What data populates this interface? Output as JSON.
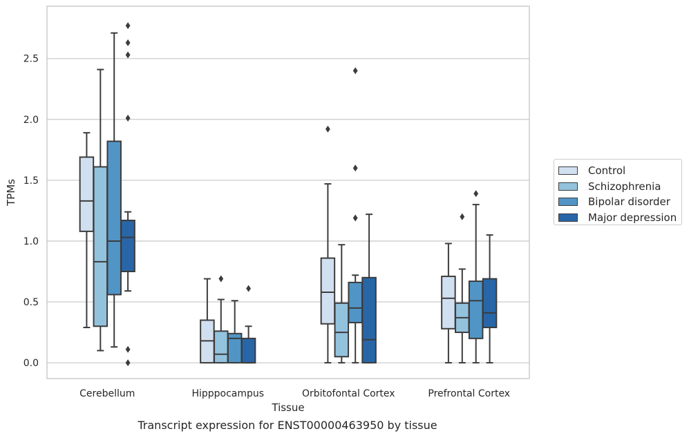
{
  "chart_data": {
    "type": "box",
    "xlabel": "Tissue",
    "ylabel": "TPMs",
    "ylim": [
      -0.13,
      2.93
    ],
    "yticks": [
      0.0,
      0.5,
      1.0,
      1.5,
      2.0,
      2.5
    ],
    "ytick_labels": [
      "0.0",
      "0.5",
      "1.0",
      "1.5",
      "2.0",
      "2.5"
    ],
    "categories": [
      "Cerebellum",
      "Hipppocampus",
      "Orbitofontal Cortex",
      "Prefrontal Cortex"
    ],
    "grid": "horizontal",
    "legend_position": "right",
    "series": [
      {
        "name": "Control",
        "color": "#d1e0f0",
        "boxes": [
          {
            "whislo": 0.29,
            "q1": 1.08,
            "med": 1.33,
            "q3": 1.69,
            "whishi": 1.89,
            "fliers": []
          },
          {
            "whislo": 0.0,
            "q1": 0.0,
            "med": 0.18,
            "q3": 0.35,
            "whishi": 0.69,
            "fliers": []
          },
          {
            "whislo": 0.0,
            "q1": 0.32,
            "med": 0.58,
            "q3": 0.86,
            "whishi": 1.47,
            "fliers": [
              1.92
            ]
          },
          {
            "whislo": 0.0,
            "q1": 0.28,
            "med": 0.53,
            "q3": 0.71,
            "whishi": 0.98,
            "fliers": []
          }
        ]
      },
      {
        "name": "Schizophrenia",
        "color": "#93c2dd",
        "boxes": [
          {
            "whislo": 0.1,
            "q1": 0.3,
            "med": 0.83,
            "q3": 1.61,
            "whishi": 2.41,
            "fliers": []
          },
          {
            "whislo": 0.0,
            "q1": 0.0,
            "med": 0.07,
            "q3": 0.26,
            "whishi": 0.52,
            "fliers": [
              0.69
            ]
          },
          {
            "whislo": 0.0,
            "q1": 0.05,
            "med": 0.25,
            "q3": 0.49,
            "whishi": 0.97,
            "fliers": []
          },
          {
            "whislo": 0.0,
            "q1": 0.25,
            "med": 0.37,
            "q3": 0.49,
            "whishi": 0.77,
            "fliers": [
              1.2
            ]
          }
        ]
      },
      {
        "name": "Bipolar disorder",
        "color": "#5195c6",
        "boxes": [
          {
            "whislo": 0.13,
            "q1": 0.56,
            "med": 1.0,
            "q3": 1.82,
            "whishi": 2.71,
            "fliers": []
          },
          {
            "whislo": 0.0,
            "q1": 0.0,
            "med": 0.2,
            "q3": 0.24,
            "whishi": 0.51,
            "fliers": []
          },
          {
            "whislo": 0.0,
            "q1": 0.33,
            "med": 0.45,
            "q3": 0.66,
            "whishi": 0.72,
            "fliers": [
              1.19,
              1.6,
              2.4
            ]
          },
          {
            "whislo": 0.0,
            "q1": 0.2,
            "med": 0.51,
            "q3": 0.67,
            "whishi": 1.3,
            "fliers": [
              1.39
            ]
          }
        ]
      },
      {
        "name": "Major depression",
        "color": "#2866a7",
        "boxes": [
          {
            "whislo": 0.59,
            "q1": 0.75,
            "med": 1.03,
            "q3": 1.17,
            "whishi": 1.24,
            "fliers": [
              0.0,
              0.11,
              2.01,
              2.53,
              2.77,
              2.63
            ]
          },
          {
            "whislo": 0.0,
            "q1": 0.0,
            "med": 0.0,
            "q3": 0.2,
            "whishi": 0.3,
            "fliers": [
              0.61
            ]
          },
          {
            "whislo": 0.0,
            "q1": 0.0,
            "med": 0.19,
            "q3": 0.7,
            "whishi": 1.22,
            "fliers": []
          },
          {
            "whislo": 0.0,
            "q1": 0.29,
            "med": 0.41,
            "q3": 0.69,
            "whishi": 1.05,
            "fliers": []
          }
        ]
      }
    ]
  },
  "caption": "Transcript expression for ENST00000463950 by tissue"
}
